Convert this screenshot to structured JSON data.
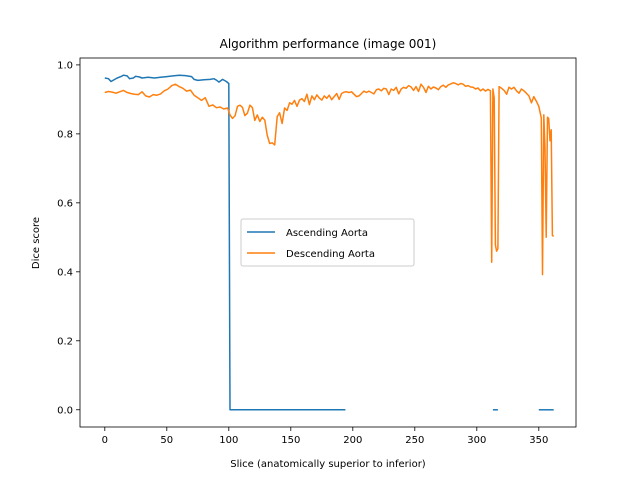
{
  "chart_data": {
    "type": "line",
    "title": "Algorithm performance (image 001)",
    "xlabel": "Slice (anatomically superior to inferior)",
    "ylabel": "Dice score",
    "xlim": [
      -20,
      380
    ],
    "ylim": [
      -0.05,
      1.02
    ],
    "xticks": [
      0,
      50,
      100,
      150,
      200,
      250,
      300,
      350
    ],
    "yticks": [
      0.0,
      0.2,
      0.4,
      0.6,
      0.8,
      1.0
    ],
    "ytick_labels": [
      "0.0",
      "0.2",
      "0.4",
      "0.6",
      "0.8",
      "1.0"
    ],
    "grid": false,
    "legend_position": "center",
    "series": [
      {
        "name": "Ascending Aorta",
        "color": "#1f77b4",
        "segments": [
          [
            [
              0,
              0.962
            ],
            [
              3,
              0.96
            ],
            [
              5,
              0.952
            ],
            [
              8,
              0.958
            ],
            [
              10,
              0.962
            ],
            [
              13,
              0.966
            ],
            [
              15,
              0.97
            ],
            [
              18,
              0.968
            ],
            [
              20,
              0.96
            ],
            [
              23,
              0.962
            ],
            [
              25,
              0.967
            ],
            [
              28,
              0.965
            ],
            [
              30,
              0.962
            ],
            [
              35,
              0.964
            ],
            [
              40,
              0.962
            ],
            [
              45,
              0.964
            ],
            [
              50,
              0.966
            ],
            [
              55,
              0.968
            ],
            [
              60,
              0.97
            ],
            [
              65,
              0.969
            ],
            [
              70,
              0.966
            ],
            [
              72,
              0.958
            ],
            [
              75,
              0.955
            ],
            [
              80,
              0.957
            ],
            [
              85,
              0.958
            ],
            [
              88,
              0.96
            ],
            [
              90,
              0.956
            ],
            [
              92,
              0.95
            ],
            [
              95,
              0.958
            ],
            [
              98,
              0.952
            ],
            [
              100,
              0.946
            ],
            [
              101,
              0.0
            ],
            [
              150,
              0.0
            ],
            [
              194,
              0.0
            ]
          ],
          [
            [
              313,
              0.0
            ],
            [
              317,
              0.0
            ]
          ],
          [
            [
              350,
              0.0
            ],
            [
              362,
              0.0
            ]
          ]
        ]
      },
      {
        "name": "Descending Aorta",
        "color": "#ff7f0e",
        "segments": [
          [
            [
              0,
              0.92
            ],
            [
              3,
              0.923
            ],
            [
              6,
              0.921
            ],
            [
              9,
              0.918
            ],
            [
              12,
              0.922
            ],
            [
              15,
              0.926
            ],
            [
              18,
              0.92
            ],
            [
              21,
              0.917
            ],
            [
              24,
              0.915
            ],
            [
              27,
              0.914
            ],
            [
              30,
              0.922
            ],
            [
              33,
              0.91
            ],
            [
              36,
              0.907
            ],
            [
              39,
              0.914
            ],
            [
              42,
              0.912
            ],
            [
              45,
              0.916
            ],
            [
              48,
              0.925
            ],
            [
              51,
              0.93
            ],
            [
              54,
              0.94
            ],
            [
              57,
              0.944
            ],
            [
              60,
              0.937
            ],
            [
              63,
              0.932
            ],
            [
              66,
              0.924
            ],
            [
              69,
              0.927
            ],
            [
              72,
              0.912
            ],
            [
              75,
              0.905
            ],
            [
              78,
              0.897
            ],
            [
              81,
              0.905
            ],
            [
              84,
              0.88
            ],
            [
              87,
              0.884
            ],
            [
              90,
              0.876
            ],
            [
              93,
              0.878
            ],
            [
              96,
              0.872
            ],
            [
              99,
              0.875
            ],
            [
              101,
              0.855
            ],
            [
              103,
              0.845
            ],
            [
              105,
              0.852
            ],
            [
              107,
              0.88
            ],
            [
              109,
              0.883
            ],
            [
              111,
              0.877
            ],
            [
              113,
              0.853
            ],
            [
              115,
              0.86
            ],
            [
              117,
              0.883
            ],
            [
              119,
              0.876
            ],
            [
              121,
              0.839
            ],
            [
              123,
              0.855
            ],
            [
              125,
              0.836
            ],
            [
              127,
              0.848
            ],
            [
              129,
              0.84
            ],
            [
              131,
              0.796
            ],
            [
              133,
              0.772
            ],
            [
              135,
              0.774
            ],
            [
              137,
              0.768
            ],
            [
              139,
              0.85
            ],
            [
              141,
              0.861
            ],
            [
              143,
              0.83
            ],
            [
              145,
              0.875
            ],
            [
              147,
              0.868
            ],
            [
              149,
              0.89
            ],
            [
              151,
              0.886
            ],
            [
              153,
              0.897
            ],
            [
              155,
              0.88
            ],
            [
              157,
              0.898
            ],
            [
              159,
              0.902
            ],
            [
              161,
              0.894
            ],
            [
              163,
              0.915
            ],
            [
              165,
              0.885
            ],
            [
              167,
              0.91
            ],
            [
              169,
              0.899
            ],
            [
              171,
              0.913
            ],
            [
              173,
              0.904
            ],
            [
              175,
              0.898
            ],
            [
              177,
              0.91
            ],
            [
              179,
              0.903
            ],
            [
              181,
              0.912
            ],
            [
              183,
              0.899
            ],
            [
              185,
              0.908
            ],
            [
              187,
              0.917
            ],
            [
              189,
              0.9
            ],
            [
              191,
              0.917
            ],
            [
              193,
              0.921
            ],
            [
              195,
              0.922
            ],
            [
              197,
              0.92
            ],
            [
              199,
              0.922
            ],
            [
              201,
              0.915
            ],
            [
              203,
              0.908
            ],
            [
              205,
              0.91
            ],
            [
              207,
              0.917
            ],
            [
              209,
              0.924
            ],
            [
              211,
              0.92
            ],
            [
              213,
              0.924
            ],
            [
              215,
              0.92
            ],
            [
              217,
              0.916
            ],
            [
              219,
              0.928
            ],
            [
              221,
              0.93
            ],
            [
              223,
              0.925
            ],
            [
              225,
              0.932
            ],
            [
              227,
              0.93
            ],
            [
              229,
              0.914
            ],
            [
              231,
              0.93
            ],
            [
              233,
              0.926
            ],
            [
              235,
              0.935
            ],
            [
              237,
              0.916
            ],
            [
              239,
              0.93
            ],
            [
              241,
              0.935
            ],
            [
              243,
              0.932
            ],
            [
              245,
              0.94
            ],
            [
              247,
              0.936
            ],
            [
              249,
              0.926
            ],
            [
              251,
              0.937
            ],
            [
              253,
              0.923
            ],
            [
              255,
              0.944
            ],
            [
              257,
              0.935
            ],
            [
              259,
              0.92
            ],
            [
              261,
              0.938
            ],
            [
              263,
              0.93
            ],
            [
              265,
              0.936
            ],
            [
              267,
              0.933
            ],
            [
              269,
              0.928
            ],
            [
              271,
              0.937
            ],
            [
              273,
              0.941
            ],
            [
              275,
              0.935
            ],
            [
              277,
              0.942
            ],
            [
              279,
              0.945
            ],
            [
              281,
              0.948
            ],
            [
              283,
              0.946
            ],
            [
              285,
              0.942
            ],
            [
              287,
              0.946
            ],
            [
              289,
              0.944
            ],
            [
              291,
              0.938
            ],
            [
              293,
              0.94
            ],
            [
              295,
              0.936
            ],
            [
              297,
              0.935
            ],
            [
              299,
              0.93
            ],
            [
              301,
              0.933
            ],
            [
              303,
              0.925
            ],
            [
              305,
              0.93
            ],
            [
              307,
              0.924
            ],
            [
              309,
              0.929
            ],
            [
              311,
              0.925
            ],
            [
              312,
              0.428
            ],
            [
              313,
              0.93
            ],
            [
              314,
              0.904
            ],
            [
              315,
              0.478
            ],
            [
              316,
              0.46
            ],
            [
              317,
              0.467
            ],
            [
              318,
              0.937
            ],
            [
              320,
              0.932
            ],
            [
              322,
              0.926
            ],
            [
              324,
              0.915
            ],
            [
              326,
              0.935
            ],
            [
              328,
              0.93
            ],
            [
              330,
              0.935
            ],
            [
              332,
              0.925
            ],
            [
              334,
              0.918
            ],
            [
              336,
              0.93
            ],
            [
              338,
              0.925
            ],
            [
              340,
              0.918
            ],
            [
              342,
              0.91
            ],
            [
              344,
              0.89
            ],
            [
              346,
              0.908
            ],
            [
              348,
              0.895
            ],
            [
              350,
              0.88
            ],
            [
              352,
              0.846
            ],
            [
              353,
              0.392
            ],
            [
              354,
              0.855
            ],
            [
              355,
              0.76
            ],
            [
              356,
              0.5
            ],
            [
              357,
              0.848
            ],
            [
              358,
              0.845
            ],
            [
              359,
              0.78
            ],
            [
              360,
              0.812
            ],
            [
              361,
              0.505
            ],
            [
              362,
              0.503
            ]
          ]
        ]
      }
    ]
  }
}
